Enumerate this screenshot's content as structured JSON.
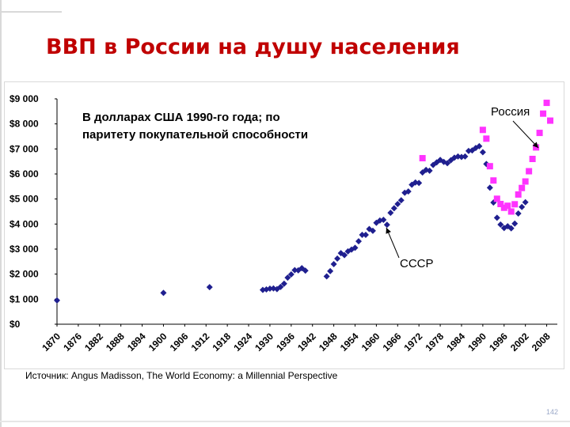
{
  "slide": {
    "title": "ВВП в России на душу населения",
    "source": "Источник: Angus Madisson, The World Economy: a Millennial Perspective",
    "page_number": "142"
  },
  "chart_data": {
    "type": "scatter",
    "title": "",
    "annotation": "В долларах США 1990-го года; по паритету покупательной способности",
    "annotation_lines": [
      "В долларах США 1990-го года; по",
      "паритету покупательной способности"
    ],
    "xlabel": "",
    "ylabel": "",
    "xlim": [
      1870,
      2011
    ],
    "ylim": [
      0,
      9000
    ],
    "x_ticks": [
      1870,
      1876,
      1882,
      1888,
      1894,
      1900,
      1906,
      1912,
      1918,
      1924,
      1930,
      1936,
      1942,
      1948,
      1954,
      1960,
      1966,
      1972,
      1978,
      1984,
      1990,
      1996,
      2002,
      2008
    ],
    "y_ticks": [
      0,
      1000,
      2000,
      3000,
      4000,
      5000,
      6000,
      7000,
      8000,
      9000
    ],
    "y_tick_labels": [
      "$0",
      "$1 000",
      "$2 000",
      "$3 000",
      "$4 000",
      "$5 000",
      "$6 000",
      "$7 000",
      "$8 000",
      "$9 000"
    ],
    "grid": false,
    "series": [
      {
        "name": "СССР",
        "color": "#1f1f8f",
        "marker": "diamond",
        "points": [
          [
            1870,
            950
          ],
          [
            1900,
            1250
          ],
          [
            1913,
            1480
          ],
          [
            1928,
            1370
          ],
          [
            1929,
            1390
          ],
          [
            1930,
            1420
          ],
          [
            1931,
            1430
          ],
          [
            1932,
            1400
          ],
          [
            1933,
            1490
          ],
          [
            1934,
            1620
          ],
          [
            1935,
            1860
          ],
          [
            1936,
            1990
          ],
          [
            1937,
            2160
          ],
          [
            1938,
            2150
          ],
          [
            1939,
            2240
          ],
          [
            1940,
            2140
          ],
          [
            1946,
            1910
          ],
          [
            1947,
            2120
          ],
          [
            1948,
            2400
          ],
          [
            1949,
            2620
          ],
          [
            1950,
            2840
          ],
          [
            1951,
            2760
          ],
          [
            1952,
            2910
          ],
          [
            1953,
            2980
          ],
          [
            1954,
            3050
          ],
          [
            1955,
            3310
          ],
          [
            1956,
            3570
          ],
          [
            1957,
            3570
          ],
          [
            1958,
            3800
          ],
          [
            1959,
            3730
          ],
          [
            1960,
            4050
          ],
          [
            1961,
            4140
          ],
          [
            1962,
            4170
          ],
          [
            1963,
            3970
          ],
          [
            1964,
            4450
          ],
          [
            1965,
            4630
          ],
          [
            1966,
            4800
          ],
          [
            1967,
            4950
          ],
          [
            1968,
            5250
          ],
          [
            1969,
            5300
          ],
          [
            1970,
            5570
          ],
          [
            1971,
            5660
          ],
          [
            1972,
            5640
          ],
          [
            1973,
            6060
          ],
          [
            1974,
            6160
          ],
          [
            1975,
            6130
          ],
          [
            1976,
            6360
          ],
          [
            1977,
            6460
          ],
          [
            1978,
            6560
          ],
          [
            1979,
            6480
          ],
          [
            1980,
            6430
          ],
          [
            1981,
            6550
          ],
          [
            1982,
            6650
          ],
          [
            1983,
            6700
          ],
          [
            1984,
            6680
          ],
          [
            1985,
            6700
          ],
          [
            1986,
            6920
          ],
          [
            1987,
            6940
          ],
          [
            1988,
            7040
          ],
          [
            1989,
            7110
          ],
          [
            1990,
            6870
          ],
          [
            1991,
            6400
          ],
          [
            1992,
            5450
          ],
          [
            1993,
            4860
          ],
          [
            1994,
            4250
          ],
          [
            1995,
            3980
          ],
          [
            1996,
            3840
          ],
          [
            1997,
            3910
          ],
          [
            1998,
            3830
          ],
          [
            1999,
            4020
          ],
          [
            2000,
            4420
          ],
          [
            2001,
            4680
          ],
          [
            2002,
            4870
          ]
        ]
      },
      {
        "name": "Россия",
        "color": "#ff33ff",
        "marker": "square",
        "points": [
          [
            1973,
            6630
          ],
          [
            1990,
            7760
          ],
          [
            1991,
            7410
          ],
          [
            1992,
            6310
          ],
          [
            1993,
            5740
          ],
          [
            1994,
            5010
          ],
          [
            1995,
            4800
          ],
          [
            1996,
            4650
          ],
          [
            1997,
            4730
          ],
          [
            1998,
            4500
          ],
          [
            1999,
            4790
          ],
          [
            2000,
            5180
          ],
          [
            2001,
            5440
          ],
          [
            2002,
            5700
          ],
          [
            2003,
            6110
          ],
          [
            2004,
            6600
          ],
          [
            2005,
            7060
          ],
          [
            2006,
            7640
          ],
          [
            2007,
            8410
          ],
          [
            2008,
            8840
          ],
          [
            2009,
            8130
          ]
        ]
      }
    ],
    "labels": [
      {
        "text": "Россия",
        "series": "Россия"
      },
      {
        "text": "СССР",
        "series": "СССР"
      }
    ]
  }
}
